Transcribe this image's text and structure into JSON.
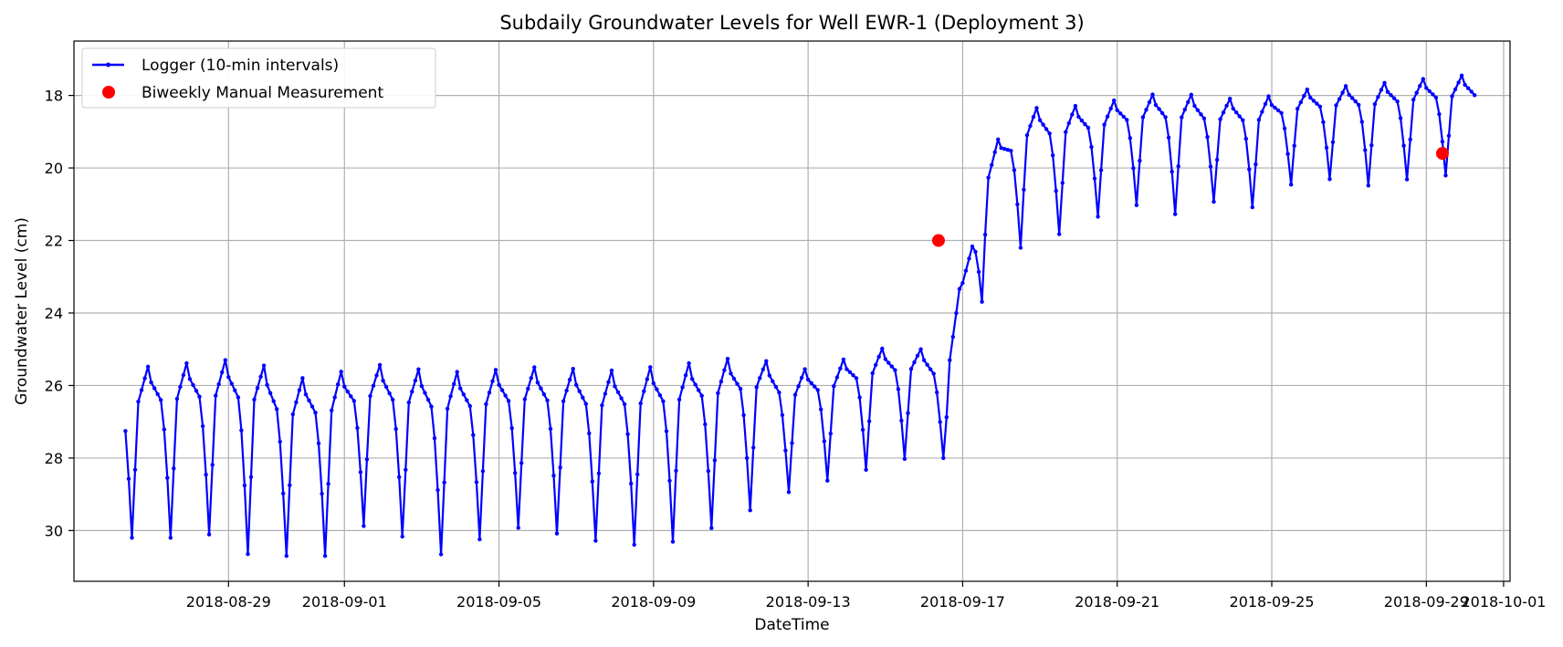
{
  "chart_data": {
    "type": "line",
    "title": "Subdaily Groundwater Levels for Well EWR-1 (Deployment 3)",
    "xlabel": "DateTime",
    "ylabel": "Groundwater Level (cm)",
    "x_type": "date",
    "xlim": [
      "2018-08-25T00:00",
      "2018-10-01T04:00"
    ],
    "ylim": [
      31.4,
      16.5
    ],
    "y_inverted": true,
    "y_ticks": [
      18,
      20,
      22,
      24,
      26,
      28,
      30
    ],
    "x_ticks": [
      "2018-08-29",
      "2018-09-01",
      "2018-09-05",
      "2018-09-09",
      "2018-09-13",
      "2018-09-17",
      "2018-09-21",
      "2018-09-25",
      "2018-09-29",
      "2018-10-01"
    ],
    "grid": true,
    "legend_position": "upper-left",
    "series": [
      {
        "name": "Logger (10-min intervals)",
        "kind": "line-marker",
        "color": "#0000ff",
        "daily_cycles": [
          {
            "date": "2018-08-26",
            "max": 30.2,
            "min": 25.2
          },
          {
            "date": "2018-08-27",
            "max": 30.2,
            "min": 25.1
          },
          {
            "date": "2018-08-28",
            "max": 30.1,
            "min": 25.0
          },
          {
            "date": "2018-08-29",
            "max": 30.7,
            "min": 24.9
          },
          {
            "date": "2018-08-30",
            "max": 30.7,
            "min": 25.5
          },
          {
            "date": "2018-08-31",
            "max": 30.7,
            "min": 25.4
          },
          {
            "date": "2018-09-01",
            "max": 29.8,
            "min": 25.1
          },
          {
            "date": "2018-09-02",
            "max": 30.2,
            "min": 25.2
          },
          {
            "date": "2018-09-03",
            "max": 30.7,
            "min": 25.3
          },
          {
            "date": "2018-09-04",
            "max": 30.2,
            "min": 25.3
          },
          {
            "date": "2018-09-05",
            "max": 29.9,
            "min": 25.2
          },
          {
            "date": "2018-09-06",
            "max": 30.1,
            "min": 25.2
          },
          {
            "date": "2018-09-07",
            "max": 30.3,
            "min": 25.3
          },
          {
            "date": "2018-09-08",
            "max": 30.4,
            "min": 25.2
          },
          {
            "date": "2018-09-09",
            "max": 30.3,
            "min": 25.1
          },
          {
            "date": "2018-09-10",
            "max": 29.9,
            "min": 25.0
          },
          {
            "date": "2018-09-11",
            "max": 29.4,
            "min": 24.9
          },
          {
            "date": "2018-09-12",
            "max": 28.9,
            "min": 25.4
          },
          {
            "date": "2018-09-13",
            "max": 28.6,
            "min": 25.2
          },
          {
            "date": "2018-09-14",
            "max": 28.3,
            "min": 24.8
          },
          {
            "date": "2018-09-15",
            "max": 28.0,
            "min": 24.7
          },
          {
            "date": "2018-09-16",
            "max": 28.0,
            "min": 25.0
          },
          {
            "date": "2018-09-17",
            "max": 23.3,
            "min": 19.4
          },
          {
            "date": "2018-09-18",
            "max": 22.1,
            "min": 18.1
          },
          {
            "date": "2018-09-19",
            "max": 21.8,
            "min": 18.1
          },
          {
            "date": "2018-09-20",
            "max": 21.3,
            "min": 18.0
          },
          {
            "date": "2018-09-21",
            "max": 21.0,
            "min": 17.8
          },
          {
            "date": "2018-09-22",
            "max": 21.3,
            "min": 17.7
          },
          {
            "date": "2018-09-23",
            "max": 20.9,
            "min": 17.9
          },
          {
            "date": "2018-09-24",
            "max": 21.1,
            "min": 17.9
          },
          {
            "date": "2018-09-25",
            "max": 20.4,
            "min": 17.7
          },
          {
            "date": "2018-09-26",
            "max": 20.3,
            "min": 17.6
          },
          {
            "date": "2018-09-27",
            "max": 20.5,
            "min": 17.5
          },
          {
            "date": "2018-09-28",
            "max": 20.3,
            "min": 17.4
          },
          {
            "date": "2018-09-29",
            "max": 20.2,
            "min": 17.3
          },
          {
            "date": "2018-09-30",
            "max": 20.3,
            "min": 17.2
          }
        ],
        "start": "2018-08-26T08:00",
        "end": "2018-09-30T06:00"
      },
      {
        "name": "Biweekly Manual Measurement",
        "kind": "scatter",
        "color": "#ff0000",
        "points": [
          {
            "x": "2018-09-16T09:00",
            "y": 22.0
          },
          {
            "x": "2018-09-29T10:00",
            "y": 19.6
          }
        ]
      }
    ]
  }
}
